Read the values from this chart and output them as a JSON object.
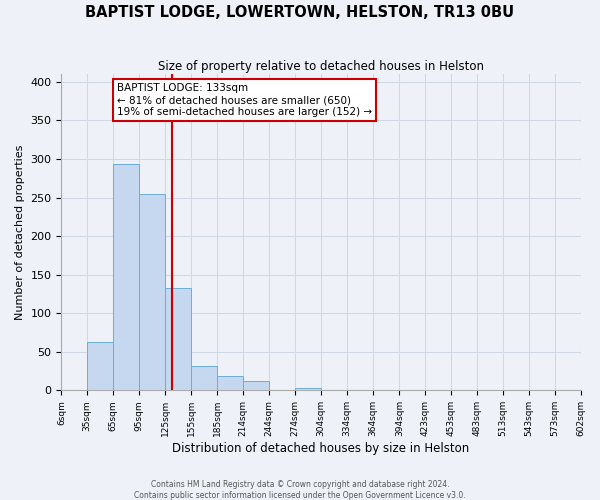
{
  "title": "BAPTIST LODGE, LOWERTOWN, HELSTON, TR13 0BU",
  "subtitle": "Size of property relative to detached houses in Helston",
  "xlabel": "Distribution of detached houses by size in Helston",
  "ylabel": "Number of detached properties",
  "footnote1": "Contains HM Land Registry data © Crown copyright and database right 2024.",
  "footnote2": "Contains public sector information licensed under the Open Government Licence v3.0.",
  "bar_edges": [
    6,
    35,
    65,
    95,
    125,
    155,
    185,
    214,
    244,
    274,
    304,
    334,
    364,
    394,
    423,
    453,
    483,
    513,
    543,
    573,
    602
  ],
  "bar_heights": [
    0,
    63,
    293,
    255,
    133,
    31,
    18,
    12,
    0,
    3,
    0,
    0,
    0,
    0,
    0,
    0,
    0,
    0,
    1,
    0,
    0
  ],
  "bar_color": "#c5d8f0",
  "bar_edge_color": "#6baed6",
  "property_line_x": 133,
  "property_line_color": "#cc0000",
  "annotation_line1": "BAPTIST LODGE: 133sqm",
  "annotation_line2": "← 81% of detached houses are smaller (650)",
  "annotation_line3": "19% of semi-detached houses are larger (152) →",
  "annotation_box_color": "#cc0000",
  "annotation_box_fill": "#ffffff",
  "ylim": [
    0,
    410
  ],
  "yticks": [
    0,
    50,
    100,
    150,
    200,
    250,
    300,
    350,
    400
  ],
  "grid_color": "#d0d8e8",
  "background_color": "#eef2f8",
  "tick_labels": [
    "6sqm",
    "35sqm",
    "65sqm",
    "95sqm",
    "125sqm",
    "155sqm",
    "185sqm",
    "214sqm",
    "244sqm",
    "274sqm",
    "304sqm",
    "334sqm",
    "364sqm",
    "394sqm",
    "423sqm",
    "453sqm",
    "483sqm",
    "513sqm",
    "543sqm",
    "573sqm",
    "602sqm"
  ]
}
